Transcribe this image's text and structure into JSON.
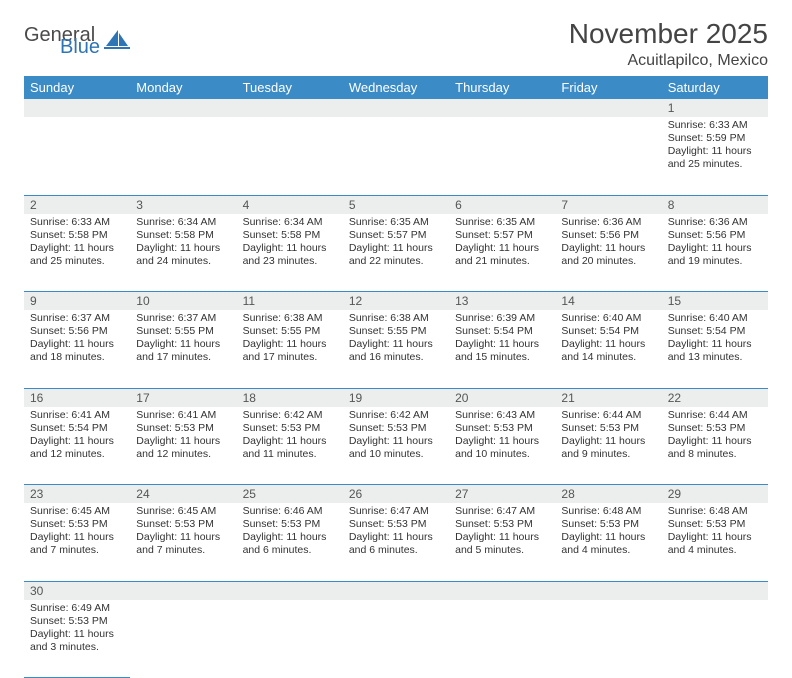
{
  "logo": {
    "word1": "General",
    "word2": "Blue"
  },
  "title": "November 2025",
  "location": "Acuitlapilco, Mexico",
  "colors": {
    "header_bg": "#3b8bc6",
    "header_fg": "#ffffff",
    "daynum_bg": "#eceeee",
    "rule": "#3b8bc6",
    "text": "#333333",
    "logo_gray": "#4a4a4a",
    "logo_blue": "#2e75b6"
  },
  "weekdays": [
    "Sunday",
    "Monday",
    "Tuesday",
    "Wednesday",
    "Thursday",
    "Friday",
    "Saturday"
  ],
  "weeks": [
    {
      "nums": [
        "",
        "",
        "",
        "",
        "",
        "",
        "1"
      ],
      "cells": [
        null,
        null,
        null,
        null,
        null,
        null,
        {
          "sunrise": "6:33 AM",
          "sunset": "5:59 PM",
          "dl": "11 hours and 25 minutes."
        }
      ]
    },
    {
      "nums": [
        "2",
        "3",
        "4",
        "5",
        "6",
        "7",
        "8"
      ],
      "cells": [
        {
          "sunrise": "6:33 AM",
          "sunset": "5:58 PM",
          "dl": "11 hours and 25 minutes."
        },
        {
          "sunrise": "6:34 AM",
          "sunset": "5:58 PM",
          "dl": "11 hours and 24 minutes."
        },
        {
          "sunrise": "6:34 AM",
          "sunset": "5:58 PM",
          "dl": "11 hours and 23 minutes."
        },
        {
          "sunrise": "6:35 AM",
          "sunset": "5:57 PM",
          "dl": "11 hours and 22 minutes."
        },
        {
          "sunrise": "6:35 AM",
          "sunset": "5:57 PM",
          "dl": "11 hours and 21 minutes."
        },
        {
          "sunrise": "6:36 AM",
          "sunset": "5:56 PM",
          "dl": "11 hours and 20 minutes."
        },
        {
          "sunrise": "6:36 AM",
          "sunset": "5:56 PM",
          "dl": "11 hours and 19 minutes."
        }
      ]
    },
    {
      "nums": [
        "9",
        "10",
        "11",
        "12",
        "13",
        "14",
        "15"
      ],
      "cells": [
        {
          "sunrise": "6:37 AM",
          "sunset": "5:56 PM",
          "dl": "11 hours and 18 minutes."
        },
        {
          "sunrise": "6:37 AM",
          "sunset": "5:55 PM",
          "dl": "11 hours and 17 minutes."
        },
        {
          "sunrise": "6:38 AM",
          "sunset": "5:55 PM",
          "dl": "11 hours and 17 minutes."
        },
        {
          "sunrise": "6:38 AM",
          "sunset": "5:55 PM",
          "dl": "11 hours and 16 minutes."
        },
        {
          "sunrise": "6:39 AM",
          "sunset": "5:54 PM",
          "dl": "11 hours and 15 minutes."
        },
        {
          "sunrise": "6:40 AM",
          "sunset": "5:54 PM",
          "dl": "11 hours and 14 minutes."
        },
        {
          "sunrise": "6:40 AM",
          "sunset": "5:54 PM",
          "dl": "11 hours and 13 minutes."
        }
      ]
    },
    {
      "nums": [
        "16",
        "17",
        "18",
        "19",
        "20",
        "21",
        "22"
      ],
      "cells": [
        {
          "sunrise": "6:41 AM",
          "sunset": "5:54 PM",
          "dl": "11 hours and 12 minutes."
        },
        {
          "sunrise": "6:41 AM",
          "sunset": "5:53 PM",
          "dl": "11 hours and 12 minutes."
        },
        {
          "sunrise": "6:42 AM",
          "sunset": "5:53 PM",
          "dl": "11 hours and 11 minutes."
        },
        {
          "sunrise": "6:42 AM",
          "sunset": "5:53 PM",
          "dl": "11 hours and 10 minutes."
        },
        {
          "sunrise": "6:43 AM",
          "sunset": "5:53 PM",
          "dl": "11 hours and 10 minutes."
        },
        {
          "sunrise": "6:44 AM",
          "sunset": "5:53 PM",
          "dl": "11 hours and 9 minutes."
        },
        {
          "sunrise": "6:44 AM",
          "sunset": "5:53 PM",
          "dl": "11 hours and 8 minutes."
        }
      ]
    },
    {
      "nums": [
        "23",
        "24",
        "25",
        "26",
        "27",
        "28",
        "29"
      ],
      "cells": [
        {
          "sunrise": "6:45 AM",
          "sunset": "5:53 PM",
          "dl": "11 hours and 7 minutes."
        },
        {
          "sunrise": "6:45 AM",
          "sunset": "5:53 PM",
          "dl": "11 hours and 7 minutes."
        },
        {
          "sunrise": "6:46 AM",
          "sunset": "5:53 PM",
          "dl": "11 hours and 6 minutes."
        },
        {
          "sunrise": "6:47 AM",
          "sunset": "5:53 PM",
          "dl": "11 hours and 6 minutes."
        },
        {
          "sunrise": "6:47 AM",
          "sunset": "5:53 PM",
          "dl": "11 hours and 5 minutes."
        },
        {
          "sunrise": "6:48 AM",
          "sunset": "5:53 PM",
          "dl": "11 hours and 4 minutes."
        },
        {
          "sunrise": "6:48 AM",
          "sunset": "5:53 PM",
          "dl": "11 hours and 4 minutes."
        }
      ]
    },
    {
      "nums": [
        "30",
        "",
        "",
        "",
        "",
        "",
        ""
      ],
      "cells": [
        {
          "sunrise": "6:49 AM",
          "sunset": "5:53 PM",
          "dl": "11 hours and 3 minutes."
        },
        null,
        null,
        null,
        null,
        null,
        null
      ]
    }
  ],
  "labels": {
    "sunrise": "Sunrise: ",
    "sunset": "Sunset: ",
    "daylight": "Daylight: "
  }
}
